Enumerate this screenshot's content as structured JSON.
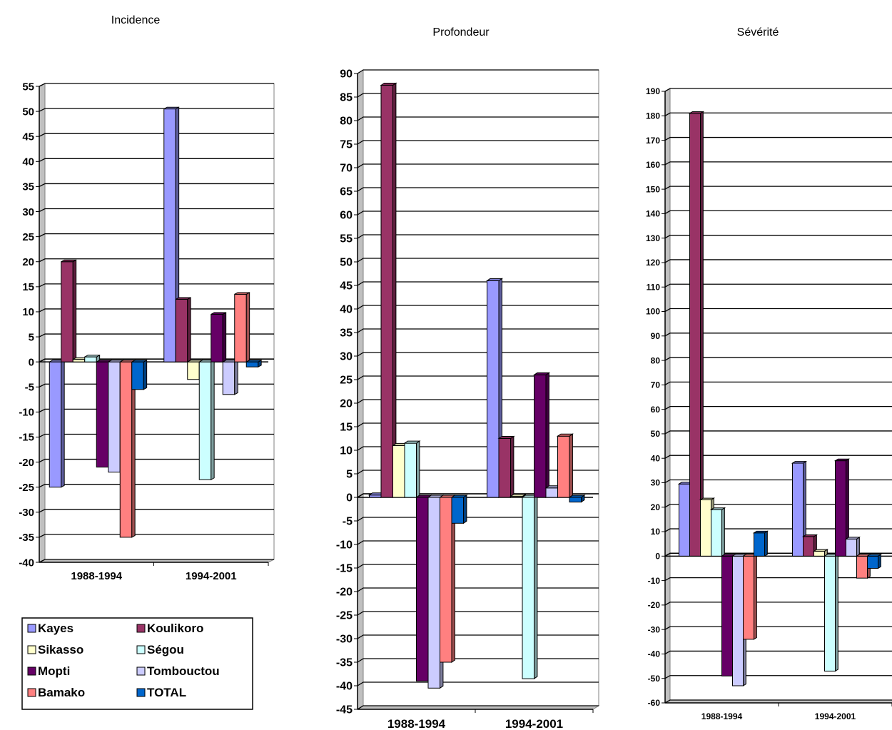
{
  "legend": {
    "entries": [
      {
        "name": "Kayes",
        "color": "#9999FF"
      },
      {
        "name": "Koulikoro",
        "color": "#993366"
      },
      {
        "name": "Sikasso",
        "color": "#FFFFCC"
      },
      {
        "name": "Ségou",
        "color": "#CCFFFF"
      },
      {
        "name": "Mopti",
        "color": "#660066"
      },
      {
        "name": "Tombouctou",
        "color": "#CCCCFF"
      },
      {
        "name": "Bamako",
        "color": "#FF8080"
      },
      {
        "name": "TOTAL",
        "color": "#0066CC"
      }
    ]
  },
  "chart_data": [
    {
      "type": "bar",
      "title": "Incidence",
      "categories": [
        "1988-1994",
        "1994-2001"
      ],
      "ylim": [
        -40,
        55
      ],
      "tick_step": 5,
      "grid": true,
      "series": [
        {
          "name": "Kayes",
          "color": "#9999FF",
          "values": [
            -25,
            50.5
          ]
        },
        {
          "name": "Koulikoro",
          "color": "#993366",
          "values": [
            20,
            12.5
          ]
        },
        {
          "name": "Sikasso",
          "color": "#FFFFCC",
          "values": [
            0.5,
            -3.5
          ]
        },
        {
          "name": "Ségou",
          "color": "#CCFFFF",
          "values": [
            1,
            -23.5
          ]
        },
        {
          "name": "Mopti",
          "color": "#660066",
          "values": [
            -21,
            9.5
          ]
        },
        {
          "name": "Tombouctou",
          "color": "#CCCCFF",
          "values": [
            -22,
            -6.5
          ]
        },
        {
          "name": "Bamako",
          "color": "#FF8080",
          "values": [
            -35,
            13.5
          ]
        },
        {
          "name": "TOTAL",
          "color": "#0066CC",
          "values": [
            -5.5,
            -1
          ]
        }
      ]
    },
    {
      "type": "bar",
      "title": "Profondeur",
      "categories": [
        "1988-1994",
        "1994-2001"
      ],
      "ylim": [
        -45,
        90
      ],
      "tick_step": 5,
      "grid": true,
      "series": [
        {
          "name": "Kayes",
          "color": "#9999FF",
          "values": [
            0.5,
            46
          ]
        },
        {
          "name": "Koulikoro",
          "color": "#993366",
          "values": [
            87.5,
            12.5
          ]
        },
        {
          "name": "Sikasso",
          "color": "#FFFFCC",
          "values": [
            11,
            0.2
          ]
        },
        {
          "name": "Ségou",
          "color": "#CCFFFF",
          "values": [
            11.5,
            -38.5
          ]
        },
        {
          "name": "Mopti",
          "color": "#660066",
          "values": [
            -39,
            26
          ]
        },
        {
          "name": "Tombouctou",
          "color": "#CCCCFF",
          "values": [
            -40.5,
            2
          ]
        },
        {
          "name": "Bamako",
          "color": "#FF8080",
          "values": [
            -35,
            13
          ]
        },
        {
          "name": "TOTAL",
          "color": "#0066CC",
          "values": [
            -5.5,
            -1
          ]
        }
      ]
    },
    {
      "type": "bar",
      "title": "Sévérité",
      "categories": [
        "1988-1994",
        "1994-2001"
      ],
      "ylim": [
        -60,
        190
      ],
      "tick_step": 10,
      "grid": true,
      "series": [
        {
          "name": "Kayes",
          "color": "#9999FF",
          "values": [
            29.5,
            38
          ]
        },
        {
          "name": "Koulikoro",
          "color": "#993366",
          "values": [
            181,
            8
          ]
        },
        {
          "name": "Sikasso",
          "color": "#FFFFCC",
          "values": [
            23,
            2
          ]
        },
        {
          "name": "Ségou",
          "color": "#CCFFFF",
          "values": [
            19,
            -47
          ]
        },
        {
          "name": "Mopti",
          "color": "#660066",
          "values": [
            -49,
            39
          ]
        },
        {
          "name": "Tombouctou",
          "color": "#CCCCFF",
          "values": [
            -53,
            7
          ]
        },
        {
          "name": "Bamako",
          "color": "#FF8080",
          "values": [
            -34,
            -9
          ]
        },
        {
          "name": "TOTAL",
          "color": "#0066CC",
          "values": [
            9.5,
            -5
          ]
        }
      ]
    }
  ]
}
